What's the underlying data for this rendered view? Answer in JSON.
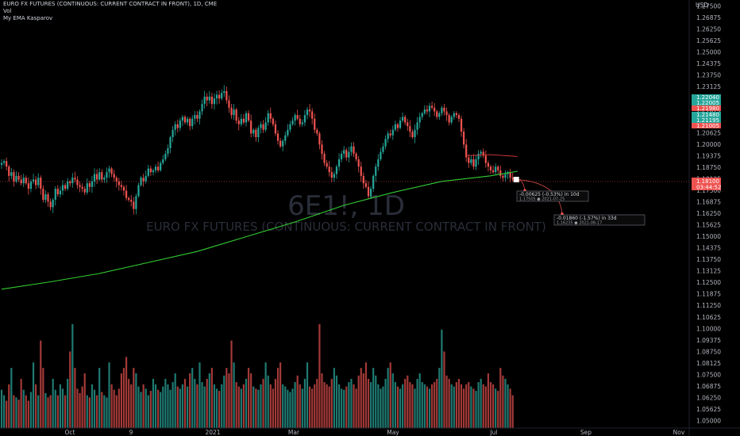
{
  "header": {
    "title": "EURO FX FUTURES (CONTINUOUS: CURRENT CONTRACT IN FRONT), 1D, CME",
    "indicator_1": "Vol",
    "indicator_2": "My EMA Kasparov"
  },
  "watermark": {
    "symbol": "6E1!, 1D",
    "description": "EURO FX FUTURES (CONTINUOUS: CURRENT CONTRACT IN FRONT)"
  },
  "colors": {
    "background": "#000000",
    "bull": "#26a69a",
    "bear": "#ef5350",
    "ema_long": "#32cd32",
    "ema_short": "#d83a3a",
    "axis_text": "#b2b5be"
  },
  "chart_data": {
    "type": "candlestick",
    "currency": "USD",
    "y_ticks": [
      "1.27500",
      "1.26875",
      "1.26250",
      "1.25625",
      "1.25000",
      "1.24375",
      "1.23750",
      "1.23125",
      "1.22500",
      "1.21875",
      "1.21250",
      "1.20625",
      "1.20000",
      "1.19375",
      "1.18750",
      "1.18125",
      "1.17500",
      "1.16875",
      "1.16250",
      "1.15625",
      "1.15000",
      "1.14375",
      "1.13750",
      "1.13125",
      "1.12500",
      "1.11875",
      "1.11250",
      "1.10625",
      "1.10000",
      "1.09375",
      "1.08750",
      "1.08125",
      "1.07500",
      "1.06875",
      "1.06250",
      "1.05625",
      "1.05000"
    ],
    "ylim": [
      1.05,
      1.275
    ],
    "x_ticks": [
      "Oct",
      "9",
      "2021",
      "Mar",
      "May",
      "Jul",
      "Sep",
      "Nov"
    ],
    "price_tags": [
      {
        "value": "1.22040",
        "color": "#26a69a"
      },
      {
        "value": "1.22005",
        "color": "#26a69a"
      },
      {
        "value": "1.21980",
        "color": "#ef5350"
      },
      {
        "value": "1.21480",
        "color": "#26a69a"
      },
      {
        "value": "1.21195",
        "color": "#26a69a"
      },
      {
        "value": "1.21005",
        "color": "#ef5350"
      }
    ],
    "last_price": {
      "value": "1.18100",
      "countdown": "03:44:52",
      "color": "#ef5350"
    },
    "projections": [
      {
        "line1": "-0.00625 (-0.53%) in 10d",
        "line2": "1.17505 ● 2021-07-25"
      },
      {
        "line1": "-0.01860 (-1.57%) in 33d",
        "line2": "1.16235 ● 2021-08-17"
      }
    ],
    "series": [
      {
        "name": "6E1!",
        "kind": "ohlc",
        "close": [
          1.19,
          1.191,
          1.188,
          1.183,
          1.185,
          1.18,
          1.183,
          1.181,
          1.179,
          1.182,
          1.179,
          1.176,
          1.18,
          1.181,
          1.178,
          1.182,
          1.176,
          1.17,
          1.173,
          1.169,
          1.166,
          1.17,
          1.176,
          1.173,
          1.175,
          1.178,
          1.176,
          1.18,
          1.179,
          1.182,
          1.181,
          1.178,
          1.177,
          1.176,
          1.174,
          1.179,
          1.177,
          1.18,
          1.184,
          1.181,
          1.185,
          1.181,
          1.182,
          1.185,
          1.187,
          1.184,
          1.182,
          1.18,
          1.178,
          1.177,
          1.175,
          1.171,
          1.17,
          1.169,
          1.165,
          1.172,
          1.178,
          1.182,
          1.18,
          1.183,
          1.187,
          1.185,
          1.186,
          1.188,
          1.186,
          1.19,
          1.192,
          1.195,
          1.198,
          1.204,
          1.208,
          1.211,
          1.209,
          1.213,
          1.215,
          1.212,
          1.214,
          1.21,
          1.214,
          1.216,
          1.214,
          1.218,
          1.222,
          1.226,
          1.224,
          1.226,
          1.222,
          1.225,
          1.227,
          1.225,
          1.228,
          1.229,
          1.224,
          1.22,
          1.216,
          1.219,
          1.213,
          1.211,
          1.214,
          1.212,
          1.217,
          1.213,
          1.206,
          1.208,
          1.204,
          1.209,
          1.211,
          1.208,
          1.212,
          1.217,
          1.214,
          1.211,
          1.206,
          1.202,
          1.199,
          1.202,
          1.205,
          1.208,
          1.211,
          1.213,
          1.216,
          1.214,
          1.211,
          1.212,
          1.216,
          1.219,
          1.218,
          1.214,
          1.208,
          1.206,
          1.2,
          1.195,
          1.19,
          1.188,
          1.185,
          1.182,
          1.184,
          1.188,
          1.192,
          1.195,
          1.197,
          1.193,
          1.196,
          1.199,
          1.195,
          1.192,
          1.188,
          1.183,
          1.179,
          1.177,
          1.172,
          1.176,
          1.183,
          1.188,
          1.192,
          1.196,
          1.199,
          1.203,
          1.206,
          1.205,
          1.208,
          1.211,
          1.209,
          1.213,
          1.215,
          1.212,
          1.21,
          1.207,
          1.204,
          1.208,
          1.212,
          1.215,
          1.217,
          1.219,
          1.218,
          1.221,
          1.22,
          1.218,
          1.215,
          1.217,
          1.22,
          1.218,
          1.216,
          1.212,
          1.215,
          1.217,
          1.216,
          1.214,
          1.207,
          1.2,
          1.193,
          1.19,
          1.192,
          1.188,
          1.192,
          1.195,
          1.196,
          1.194,
          1.19,
          1.188,
          1.186,
          1.185,
          1.188,
          1.186,
          1.183,
          1.182,
          1.184,
          1.185,
          1.182,
          1.181
        ]
      },
      {
        "name": "Vol",
        "kind": "volume",
        "values_relative": [
          0.35,
          0.3,
          0.25,
          0.4,
          0.55,
          0.3,
          0.28,
          0.26,
          0.45,
          0.35,
          0.3,
          0.25,
          0.33,
          0.6,
          0.4,
          0.3,
          0.8,
          0.55,
          0.32,
          0.28,
          0.3,
          0.45,
          0.35,
          0.3,
          0.4,
          0.36,
          0.3,
          0.45,
          0.7,
          0.95,
          0.55,
          0.36,
          0.32,
          0.38,
          0.5,
          0.3,
          0.28,
          0.4,
          0.35,
          0.3,
          0.55,
          0.33,
          0.3,
          0.28,
          0.6,
          0.4,
          0.35,
          0.3,
          0.36,
          0.5,
          0.55,
          0.65,
          0.45,
          0.4,
          0.55,
          0.5,
          0.38,
          0.33,
          0.4,
          0.36,
          0.3,
          0.34,
          0.45,
          0.4,
          0.35,
          0.33,
          0.38,
          0.45,
          0.4,
          0.35,
          0.42,
          0.5,
          0.38,
          0.36,
          0.4,
          0.45,
          0.38,
          0.5,
          0.55,
          0.45,
          0.4,
          0.6,
          0.42,
          0.38,
          0.45,
          0.5,
          0.55,
          0.4,
          0.36,
          0.34,
          0.4,
          0.48,
          0.55,
          0.5,
          0.8,
          0.6,
          0.42,
          0.38,
          0.36,
          0.4,
          0.45,
          0.55,
          0.5,
          0.38,
          0.36,
          0.35,
          0.4,
          0.45,
          0.6,
          0.48,
          0.4,
          0.36,
          0.45,
          0.55,
          0.6,
          0.4,
          0.38,
          0.35,
          0.33,
          0.36,
          0.42,
          0.48,
          0.4,
          0.36,
          0.45,
          0.6,
          0.38,
          0.36,
          0.4,
          0.45,
          0.95,
          0.5,
          0.42,
          0.4,
          0.38,
          0.45,
          0.55,
          0.48,
          0.4,
          0.36,
          0.35,
          0.38,
          0.42,
          0.45,
          0.4,
          0.36,
          0.48,
          0.55,
          0.5,
          0.6,
          0.45,
          0.42,
          0.55,
          0.48,
          0.4,
          0.36,
          0.38,
          0.45,
          0.55,
          0.6,
          0.5,
          0.42,
          0.38,
          0.36,
          0.4,
          0.45,
          0.48,
          0.42,
          0.4,
          0.36,
          0.45,
          0.5,
          0.42,
          0.4,
          0.38,
          0.36,
          0.4,
          0.42,
          0.45,
          0.55,
          0.9,
          0.7,
          0.48,
          0.45,
          0.4,
          0.38,
          0.42,
          0.45,
          0.4,
          0.36,
          0.4,
          0.42,
          0.38,
          0.36,
          0.34,
          0.42,
          0.45,
          0.4,
          0.38,
          0.5,
          0.42,
          0.4,
          0.36,
          0.34,
          0.55,
          0.48,
          0.45,
          0.4,
          0.36,
          0.3
        ]
      },
      {
        "name": "My EMA Kasparov",
        "kind": "line",
        "color": "#32cd32",
        "points": [
          [
            0,
            1.1215
          ],
          [
            20,
            1.1255
          ],
          [
            40,
            1.13
          ],
          [
            60,
            1.136
          ],
          [
            80,
            1.142
          ],
          [
            100,
            1.15
          ],
          [
            120,
            1.158
          ],
          [
            140,
            1.167
          ],
          [
            160,
            1.174
          ],
          [
            180,
            1.18
          ],
          [
            200,
            1.183
          ],
          [
            211,
            1.1855
          ]
        ]
      },
      {
        "name": "My EMA Kasparov",
        "kind": "line",
        "color": "#d83a3a",
        "points": [
          [
            190,
            1.194
          ],
          [
            200,
            1.1945
          ],
          [
            211,
            1.1935
          ]
        ]
      }
    ]
  }
}
